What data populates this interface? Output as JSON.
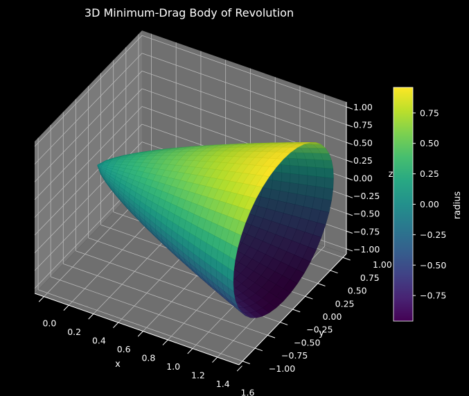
{
  "chart_data": {
    "type": "surface3d",
    "title": "3D Minimum-Drag Body of Revolution",
    "xlabel": "x",
    "ylabel": "y",
    "zlabel": "z",
    "x_ticks": [
      "0.0",
      "0.2",
      "0.4",
      "0.6",
      "0.8",
      "1.0",
      "1.2",
      "1.4",
      "1.6"
    ],
    "y_ticks": [
      "−1.00",
      "−0.75",
      "−0.50",
      "−0.25",
      "0.00",
      "0.25",
      "0.50",
      "0.75",
      "1.00"
    ],
    "z_ticks": [
      "−1.00",
      "−0.75",
      "−0.50",
      "−0.25",
      "0.00",
      "0.25",
      "0.50",
      "0.75",
      "1.00"
    ],
    "colorbar": {
      "label": "radius",
      "ticks": [
        "−0.75",
        "−0.50",
        "−0.25",
        "0.00",
        "0.25",
        "0.50",
        "0.75"
      ],
      "range": [
        -0.96,
        0.96
      ]
    },
    "colormap": "viridis",
    "body": {
      "x_range": [
        0,
        1.5
      ],
      "max_radius": 1.0,
      "profile": "power law r = (x/L)^0.75"
    },
    "grid": true,
    "pane_color": "#767676",
    "background": "#000000"
  }
}
